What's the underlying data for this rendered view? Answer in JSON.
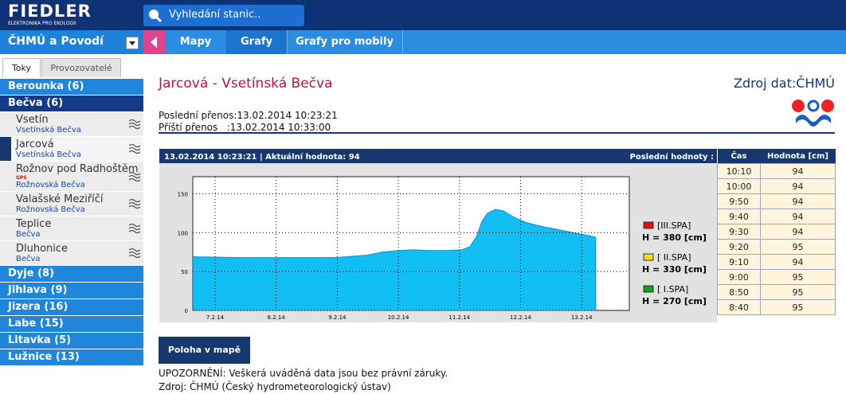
{
  "header": {
    "logo": "FIEDLER",
    "logo_sub": "ELEKTRONIKA PRO EKOLOGII",
    "search_placeholder": "Vyhledání stanic.."
  },
  "nav": {
    "dropdown": "ČHMÚ a Povodí",
    "tabs": [
      "Mapy",
      "Grafy",
      "Grafy pro mobily"
    ]
  },
  "sidebar": {
    "tabs": [
      "Toky",
      "Provozovatelé"
    ],
    "groups": [
      {
        "name": "Berounka (6)"
      },
      {
        "name": "Bečva (6)",
        "stations": [
          {
            "name": "Vsetín",
            "river": "Vsetínská Bečva"
          },
          {
            "name": "Jarcová",
            "river": "Vsetínská Bečva"
          },
          {
            "name": "Rožnov pod Radhoštěm",
            "tag": "GPS",
            "river": "Rožnovská Bečva"
          },
          {
            "name": "Valašské Meziříčí",
            "river": "Rožnovská Bečva"
          },
          {
            "name": "Teplice",
            "river": "Bečva"
          },
          {
            "name": "Dluhonice",
            "river": "Bečva"
          }
        ]
      },
      {
        "name": "Dyje (8)"
      },
      {
        "name": "Jihlava (9)"
      },
      {
        "name": "Jizera (16)"
      },
      {
        "name": "Labe (15)"
      },
      {
        "name": "Litavka (5)"
      },
      {
        "name": "Lužnice (13)"
      }
    ]
  },
  "station": {
    "title": "Jarcová - Vsetínská Bečva",
    "source": "Zdroj dat:ČHMÚ",
    "last_transfer": "Poslední přenos:13.02.2014 10:23:21",
    "next_transfer": "Příští přenos   :13.02.2014 10:33:00"
  },
  "chart_panel": {
    "header": "13.02.2014 10:23:21 | Aktuální hodnota: 94",
    "latest_label": "Poslední hodnoty :"
  },
  "chart_data": {
    "type": "area",
    "color": "#12bff5",
    "x": [
      6.64,
      7.39,
      7.91,
      8.43,
      8.96,
      9.48,
      9.74,
      10.0,
      10.26,
      10.52,
      10.78,
      11.04,
      11.17,
      11.28,
      11.37,
      11.46,
      11.59,
      11.72,
      11.89,
      12.09,
      12.35,
      12.61,
      12.87,
      13.13,
      13.23
    ],
    "values": [
      69,
      68,
      68,
      68,
      68,
      71,
      75,
      77,
      78,
      77,
      77,
      78,
      82,
      95,
      115,
      125,
      130,
      128,
      120,
      113,
      108,
      104,
      100,
      96,
      94
    ],
    "xlim": [
      6.635,
      13.78
    ],
    "xticks": [
      {
        "value": 7,
        "label": "7.2.14"
      },
      {
        "value": 8,
        "label": "8.2.14"
      },
      {
        "value": 9,
        "label": "9.2.14"
      },
      {
        "value": 10,
        "label": "10.2.14"
      },
      {
        "value": 11,
        "label": "11.2.14"
      },
      {
        "value": 12,
        "label": "12.2.14"
      },
      {
        "value": 13,
        "label": "13.2.14"
      }
    ],
    "ylim": [
      0,
      172
    ],
    "yticks": [
      0,
      50,
      100,
      150
    ],
    "grid": true,
    "thresholds": [
      {
        "label": "[III.SPA]",
        "level": "H = 380 [cm]",
        "color": "#e01010"
      },
      {
        "label": "[ II.SPA]",
        "level": "H = 330 [cm]",
        "color": "#f0e020"
      },
      {
        "label": "[ I.SPA]",
        "level": "H = 270 [cm]",
        "color": "#10a020"
      }
    ]
  },
  "latest_values": {
    "columns": [
      "Čas",
      "Hodnota [cm]"
    ],
    "rows": [
      [
        "10:10",
        94
      ],
      [
        "10:00",
        94
      ],
      [
        "9:50",
        94
      ],
      [
        "9:40",
        94
      ],
      [
        "9:30",
        94
      ],
      [
        "9:20",
        95
      ],
      [
        "9:10",
        94
      ],
      [
        "9:00",
        95
      ],
      [
        "8:50",
        95
      ],
      [
        "8:40",
        95
      ]
    ]
  },
  "button": "Poloha v mapě",
  "footer": {
    "warning": "UPOZORNĚNÍ: Veškerá uváděná data jsou bez právní záruky.",
    "source": "Zdroj: ČHMÚ (Český hydrometeorologický ústav)"
  }
}
